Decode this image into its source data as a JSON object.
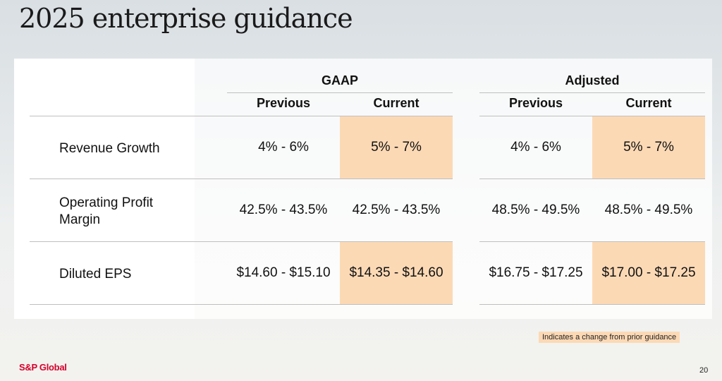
{
  "title": "2025 enterprise guidance",
  "groups": {
    "gaap": "GAAP",
    "adjusted": "Adjusted"
  },
  "columns": {
    "previous": "Previous",
    "current": "Current"
  },
  "rows": [
    {
      "label": "Revenue Growth",
      "gaap_prev": "4% - 6%",
      "gaap_curr": "5% - 7%",
      "adj_prev": "4% - 6%",
      "adj_curr": "5% - 7%",
      "gaap_changed": true,
      "adj_changed": true
    },
    {
      "label_line1": "Operating Profit",
      "label_line2": "Margin",
      "gaap_prev": "42.5% - 43.5%",
      "gaap_curr": "42.5% - 43.5%",
      "adj_prev": "48.5% - 49.5%",
      "adj_curr": "48.5% - 49.5%",
      "gaap_changed": false,
      "adj_changed": false
    },
    {
      "label": "Diluted EPS",
      "gaap_prev": "$14.60 - $15.10",
      "gaap_curr": "$14.35 - $14.60",
      "adj_prev": "$16.75 - $17.25",
      "adj_curr": "$17.00 - $17.25",
      "gaap_changed": true,
      "adj_changed": true
    }
  ],
  "legend": "Indicates a change from prior guidance",
  "logo": "S&P Global",
  "page_number": "20",
  "colors": {
    "highlight": "#fcd9b5",
    "brand": "#d6002a"
  }
}
